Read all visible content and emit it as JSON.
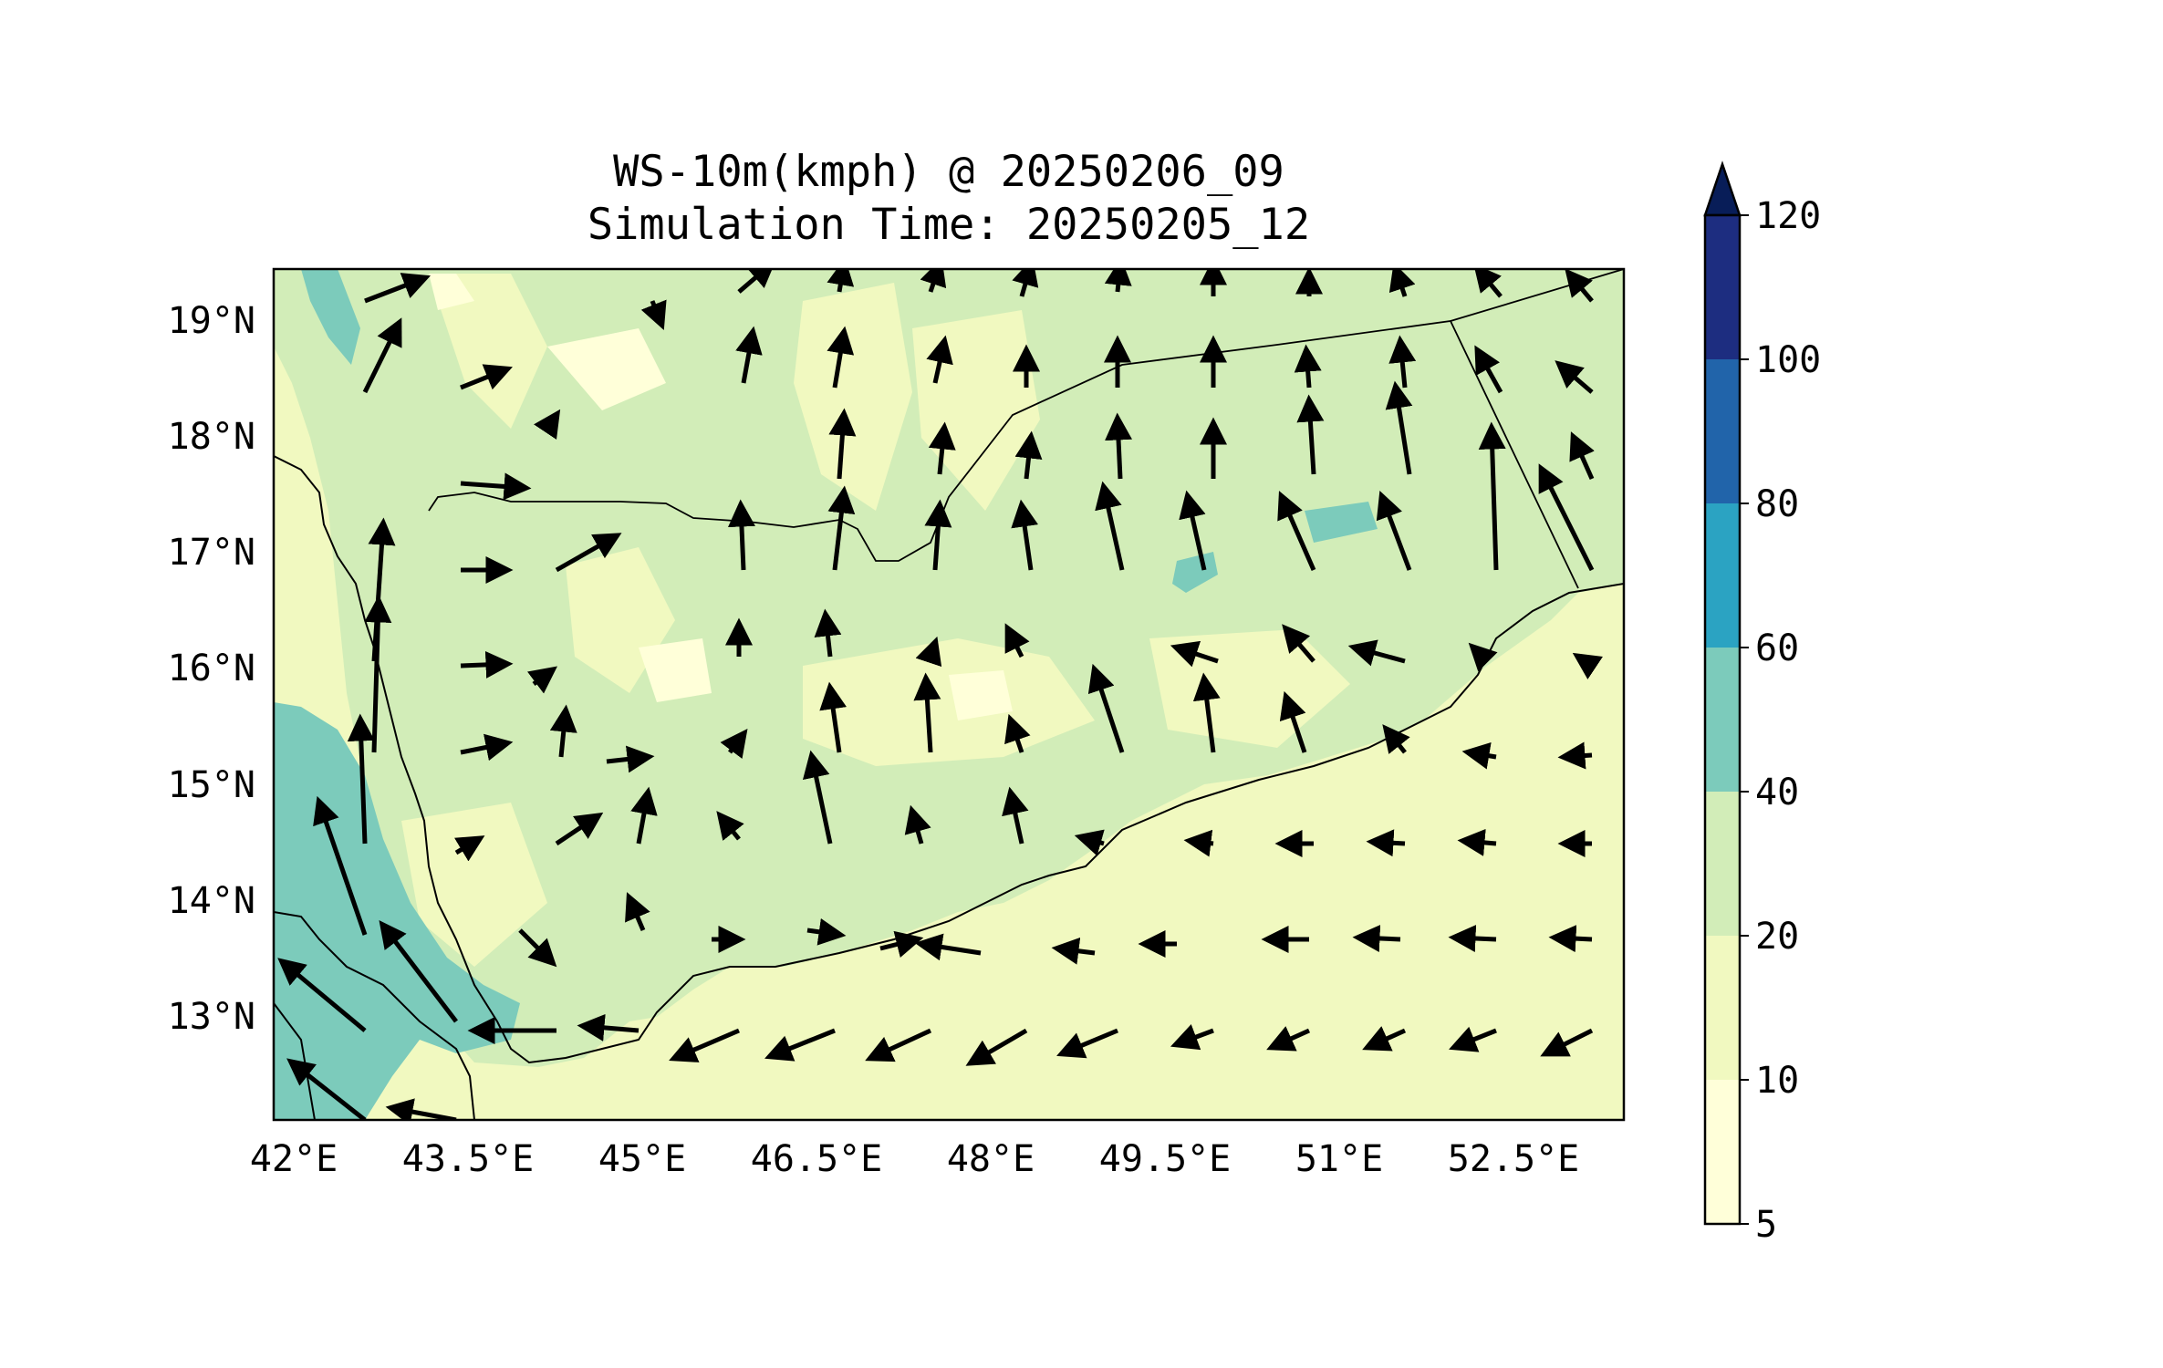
{
  "title": {
    "line1": "WS-10m(kmph) @ 20250206_09",
    "line2": "Simulation Time: 20250205_12"
  },
  "map": {
    "lon_ticks": [
      "42°E",
      "43.5°E",
      "45°E",
      "46.5°E",
      "48°E",
      "49.5°E",
      "51°E",
      "52.5°E"
    ],
    "lat_ticks": [
      "19°N",
      "18°N",
      "17°N",
      "16°N",
      "15°N",
      "14°N",
      "13°N"
    ],
    "lon_range": [
      41.9,
      53.5
    ],
    "lat_range": [
      12.1,
      19.45
    ],
    "land_color": "#d2edb8",
    "sea_color": "#f1f9c0",
    "coastline_color": "#000000",
    "vector_color": "#000000"
  },
  "colorbar": {
    "labels": [
      "120",
      "100",
      "80",
      "60",
      "40",
      "20",
      "10",
      "5"
    ],
    "levels": [
      {
        "from": "5",
        "to": "10",
        "color": "#ffffd9"
      },
      {
        "from": "10",
        "to": "20",
        "color": "#f1f9c0"
      },
      {
        "from": "20",
        "to": "40",
        "color": "#d2edb8"
      },
      {
        "from": "40",
        "to": "60",
        "color": "#7ccbbb"
      },
      {
        "from": "60",
        "to": "80",
        "color": "#2ba3c2"
      },
      {
        "from": "80",
        "to": "100",
        "color": "#2164aa"
      },
      {
        "from": "100",
        "to": "120",
        "color": "#1d2d80"
      }
    ],
    "extend_color": "#081d58"
  }
}
